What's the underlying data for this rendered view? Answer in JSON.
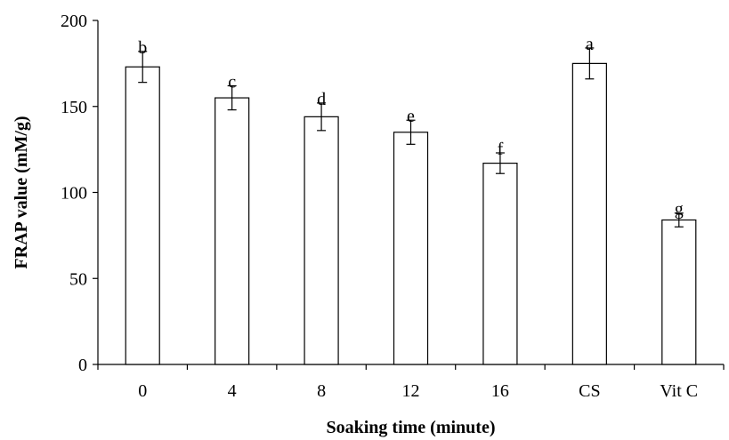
{
  "chart_data": {
    "type": "bar",
    "title": "",
    "xlabel": "Soaking time (minute)",
    "ylabel": "FRAP value (mM/g)",
    "ylim": [
      0,
      200
    ],
    "yticks": [
      "0",
      "50",
      "100",
      "150",
      "200"
    ],
    "categories": [
      "0",
      "4",
      "8",
      "12",
      "16",
      "CS",
      "Vit C"
    ],
    "values": [
      173,
      155,
      144,
      135,
      117,
      175,
      84
    ],
    "errors": [
      9,
      7,
      8,
      7,
      6,
      9,
      4
    ],
    "significance": [
      "b",
      "c",
      "d",
      "e",
      "f",
      "a",
      "g"
    ],
    "grid": false,
    "legend": "none",
    "colors": {
      "bar_fill": "#ffffff",
      "bar_stroke": "#000000",
      "axis": "#000000"
    }
  }
}
